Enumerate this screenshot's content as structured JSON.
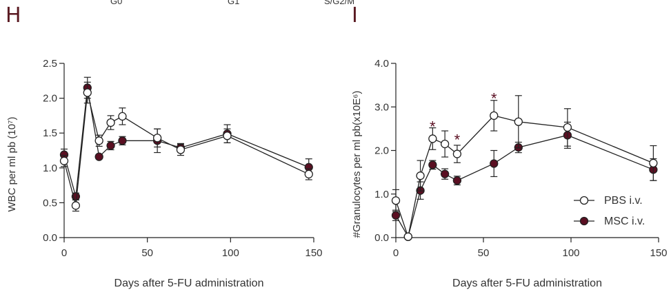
{
  "top_labels": [
    "G0",
    "G1",
    "S/G2/M"
  ],
  "colors": {
    "pbs": "#ffffff",
    "msc": "#5a0f22",
    "line": "#222222",
    "star": "#5a0f22",
    "panel": "#5a1a22"
  },
  "chart_data": [
    {
      "panel": "H",
      "type": "line",
      "xlabel": "Days after 5-FU administration",
      "ylabel": "WBC per ml pb (10⁷)",
      "xlim": [
        0,
        150
      ],
      "ylim": [
        0.0,
        2.5
      ],
      "xticks": [
        0,
        50,
        100,
        150
      ],
      "yticks": [
        0.0,
        0.5,
        1.0,
        1.5,
        2.0,
        2.5
      ],
      "ytick_labels": [
        "0.0",
        "0.5",
        "1.0",
        "1.5",
        "2.0",
        "2.5"
      ],
      "series": [
        {
          "name": "PBS i.v.",
          "marker": "open-circle",
          "x": [
            0,
            7,
            14,
            21,
            28,
            35,
            56,
            70,
            98,
            147
          ],
          "y": [
            1.1,
            0.46,
            2.08,
            1.39,
            1.65,
            1.74,
            1.43,
            1.26,
            1.46,
            0.91
          ],
          "err": [
            0.08,
            0.08,
            0.15,
            0.08,
            0.1,
            0.12,
            0.13,
            0.08,
            0.1,
            0.08
          ]
        },
        {
          "name": "MSC i.v.",
          "marker": "filled-circle",
          "x": [
            0,
            7,
            14,
            21,
            28,
            35,
            56,
            70,
            98,
            147
          ],
          "y": [
            1.19,
            0.59,
            2.15,
            1.16,
            1.32,
            1.39,
            1.39,
            1.29,
            1.49,
            1.01
          ],
          "err": [
            0.08,
            0.05,
            0.15,
            0.03,
            0.06,
            0.06,
            0.17,
            0.06,
            0.13,
            0.12
          ]
        }
      ],
      "annotations": []
    },
    {
      "panel": "I",
      "type": "line",
      "xlabel": "Days after 5-FU administration",
      "ylabel": "#Granulocytes per ml pb(x10E⁶)",
      "xlim": [
        0,
        150
      ],
      "ylim": [
        0.0,
        4.0
      ],
      "xticks": [
        0,
        50,
        100,
        150
      ],
      "yticks": [
        0.0,
        1.0,
        2.0,
        3.0,
        4.0
      ],
      "ytick_labels": [
        "0.0",
        "1.0",
        "2.0",
        "3.0",
        "4.0"
      ],
      "legend": {
        "placement": "bottom-right",
        "entries": [
          "PBS i.v.",
          "MSC i.v."
        ]
      },
      "series": [
        {
          "name": "PBS i.v.",
          "marker": "open-circle",
          "x": [
            0,
            7,
            14,
            21,
            28,
            35,
            56,
            70,
            98,
            147
          ],
          "y": [
            0.85,
            0.02,
            1.42,
            2.27,
            2.15,
            1.92,
            2.8,
            2.66,
            2.53,
            1.71
          ],
          "err": [
            0.25,
            0.03,
            0.35,
            0.25,
            0.3,
            0.2,
            0.35,
            0.6,
            0.43,
            0.4
          ]
        },
        {
          "name": "MSC i.v.",
          "marker": "filled-circle",
          "x": [
            0,
            7,
            14,
            21,
            28,
            35,
            56,
            70,
            98,
            147
          ],
          "y": [
            0.51,
            0.02,
            1.08,
            1.67,
            1.46,
            1.31,
            1.7,
            2.07,
            2.35,
            1.56
          ],
          "err": [
            0.12,
            0.03,
            0.2,
            0.1,
            0.12,
            0.1,
            0.3,
            0.12,
            0.3,
            0.25
          ]
        }
      ],
      "annotations": [
        {
          "text": "*",
          "x": 21,
          "y": 2.65
        },
        {
          "text": "*",
          "x": 35,
          "y": 2.35
        },
        {
          "text": "*",
          "x": 56,
          "y": 3.3
        }
      ]
    }
  ]
}
